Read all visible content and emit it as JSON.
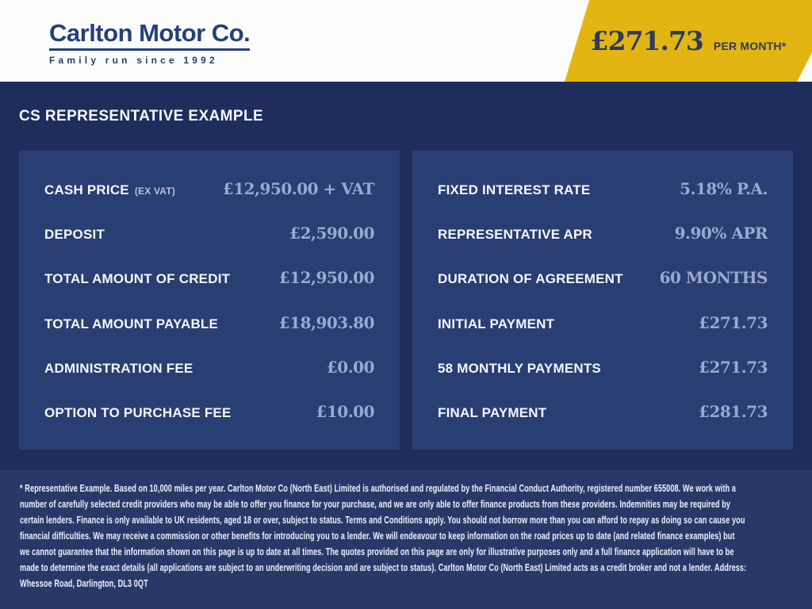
{
  "header": {
    "logo": {
      "name": "Carlton Motor Co.",
      "tagline": "Family run since 1992"
    },
    "ribbon": {
      "price": "£271.73",
      "per_label": "PER MONTH*"
    }
  },
  "main": {
    "heading": "CS REPRESENTATIVE EXAMPLE",
    "panels": [
      {
        "rows": [
          {
            "label": "CASH PRICE",
            "note": "(EX VAT)",
            "value": "£12,950.00 + VAT"
          },
          {
            "label": "DEPOSIT",
            "value": "£2,590.00"
          },
          {
            "label": "TOTAL AMOUNT OF CREDIT",
            "value": "£12,950.00"
          },
          {
            "label": "TOTAL AMOUNT PAYABLE",
            "value": "£18,903.80"
          },
          {
            "label": "ADMINISTRATION FEE",
            "value": "£0.00"
          },
          {
            "label": "OPTION TO PURCHASE FEE",
            "value": "£10.00"
          }
        ]
      },
      {
        "rows": [
          {
            "label": "FIXED INTEREST RATE",
            "value": "5.18% P.A."
          },
          {
            "label": "REPRESENTATIVE APR",
            "value": "9.90% APR"
          },
          {
            "label": "DURATION OF AGREEMENT",
            "value": "60 MONTHS"
          },
          {
            "label": "INITIAL PAYMENT",
            "value": "£271.73"
          },
          {
            "label": "58 MONTHLY PAYMENTS",
            "value": "£271.73"
          },
          {
            "label": "FINAL PAYMENT",
            "value": "£281.73"
          }
        ]
      }
    ]
  },
  "footer": {
    "disclaimer": "* Representative Example. Based on 10,000 miles per year. Carlton Motor Co (North East) Limited is authorised and regulated by the Financial Conduct Authority, registered number 655008. We work with a number of carefully selected credit providers who may be able to offer you finance for your purchase, and we are only able to offer finance products from these providers. Indemnities may be required by certain lenders. Finance is only available to UK residents, aged 18 or over, subject to status. Terms and Conditions apply. You should not borrow more than you can afford to repay as doing so can cause you financial difficulties. We may receive a commission or other benefits for introducing you to a lender. We will endeavour to keep information on the road prices up to date (and related finance examples) but we cannot guarantee that the information shown on this page is up to date at all times. The quotes provided on this page are only for illustrative purposes only and a full finance application will have to be made to determine the exact details (all applications are subject to an underwriting decision and are subject to status). Carlton Motor Co (North East) Limited acts as a credit broker and not a lender. Address: Whessoe Road, Darlington, DL3 0QT"
  },
  "colors": {
    "accent_yellow": "#e2b513",
    "navy_background": "#1e2d5b",
    "panel_background": "#293e72",
    "footer_background": "#283969",
    "brand_navy": "#24407c",
    "value_text": "#9aa9cf",
    "label_text": "#f4f6fa"
  }
}
